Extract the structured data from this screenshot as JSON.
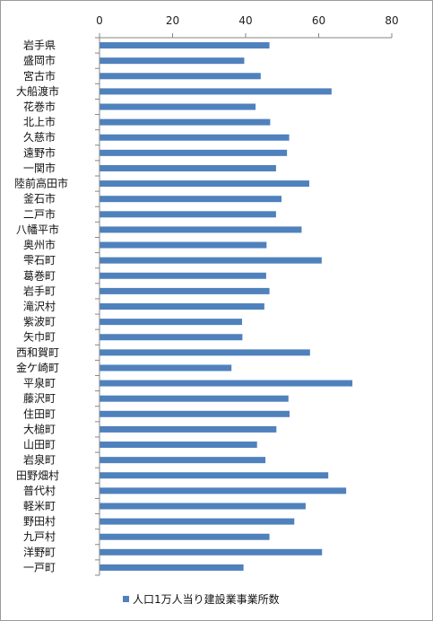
{
  "chart_data": {
    "type": "bar",
    "orientation": "horizontal",
    "categories": [
      "岩手県",
      "盛岡市",
      "宮古市",
      "大船渡市",
      "花巻市",
      "北上市",
      "久慈市",
      "遠野市",
      "一関市",
      "陸前高田市",
      "釜石市",
      "二戸市",
      "八幡平市",
      "奥州市",
      "雫石町",
      "葛巻町",
      "岩手町",
      "滝沢村",
      "紫波町",
      "矢巾町",
      "西和賀町",
      "金ケ崎町",
      "平泉町",
      "藤沢町",
      "住田町",
      "大槌町",
      "山田町",
      "岩泉町",
      "田野畑村",
      "普代村",
      "軽米町",
      "野田村",
      "九戸村",
      "洋野町",
      "一戸町"
    ],
    "series": [
      {
        "name": "人口1万人当り建設業事業所数",
        "values": [
          46.4,
          39.5,
          44.0,
          63.4,
          42.6,
          46.6,
          51.8,
          51.2,
          48.2,
          57.3,
          49.7,
          48.2,
          55.2,
          45.6,
          60.7,
          45.5,
          46.4,
          45.0,
          38.9,
          39.0,
          57.5,
          36.0,
          69.1,
          51.6,
          51.9,
          48.3,
          43.0,
          45.3,
          62.5,
          67.4,
          56.3,
          53.2,
          46.4,
          60.8,
          39.3
        ]
      }
    ],
    "xlim": [
      0,
      80
    ],
    "xticks": [
      "0",
      "20",
      "40",
      "60",
      "80"
    ],
    "legend_position": "bottom",
    "grid": false,
    "colors": {
      "bar": "#4f81bd",
      "axis": "#868686",
      "border": "#9a9a9a"
    }
  }
}
